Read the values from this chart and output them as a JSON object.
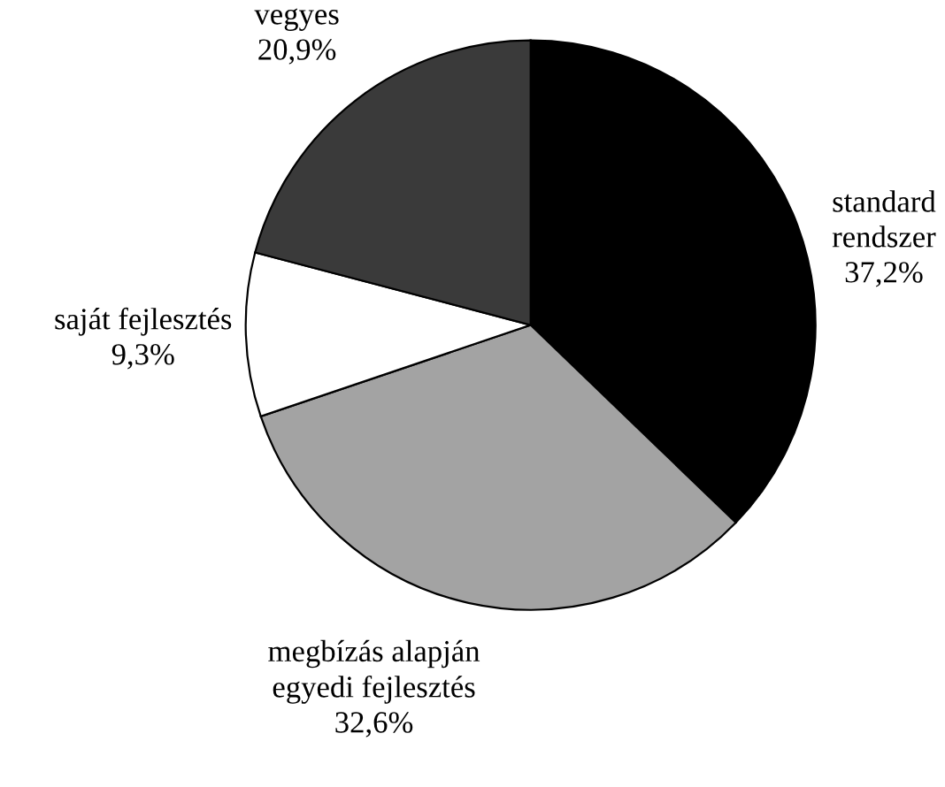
{
  "chart_data": {
    "type": "pie",
    "categories": [
      "standard\nrendszer",
      "megbízás alapján\negyedi fejlesztés",
      "saját fejlesztés",
      "vegyes"
    ],
    "values": [
      37.2,
      32.6,
      9.3,
      20.9
    ],
    "value_labels": [
      "37,2%",
      "32,6%",
      "9,3%",
      "20,9%"
    ],
    "colors": [
      "#000000",
      "#a3a3a3",
      "#ffffff",
      "#3a3a3a"
    ]
  }
}
